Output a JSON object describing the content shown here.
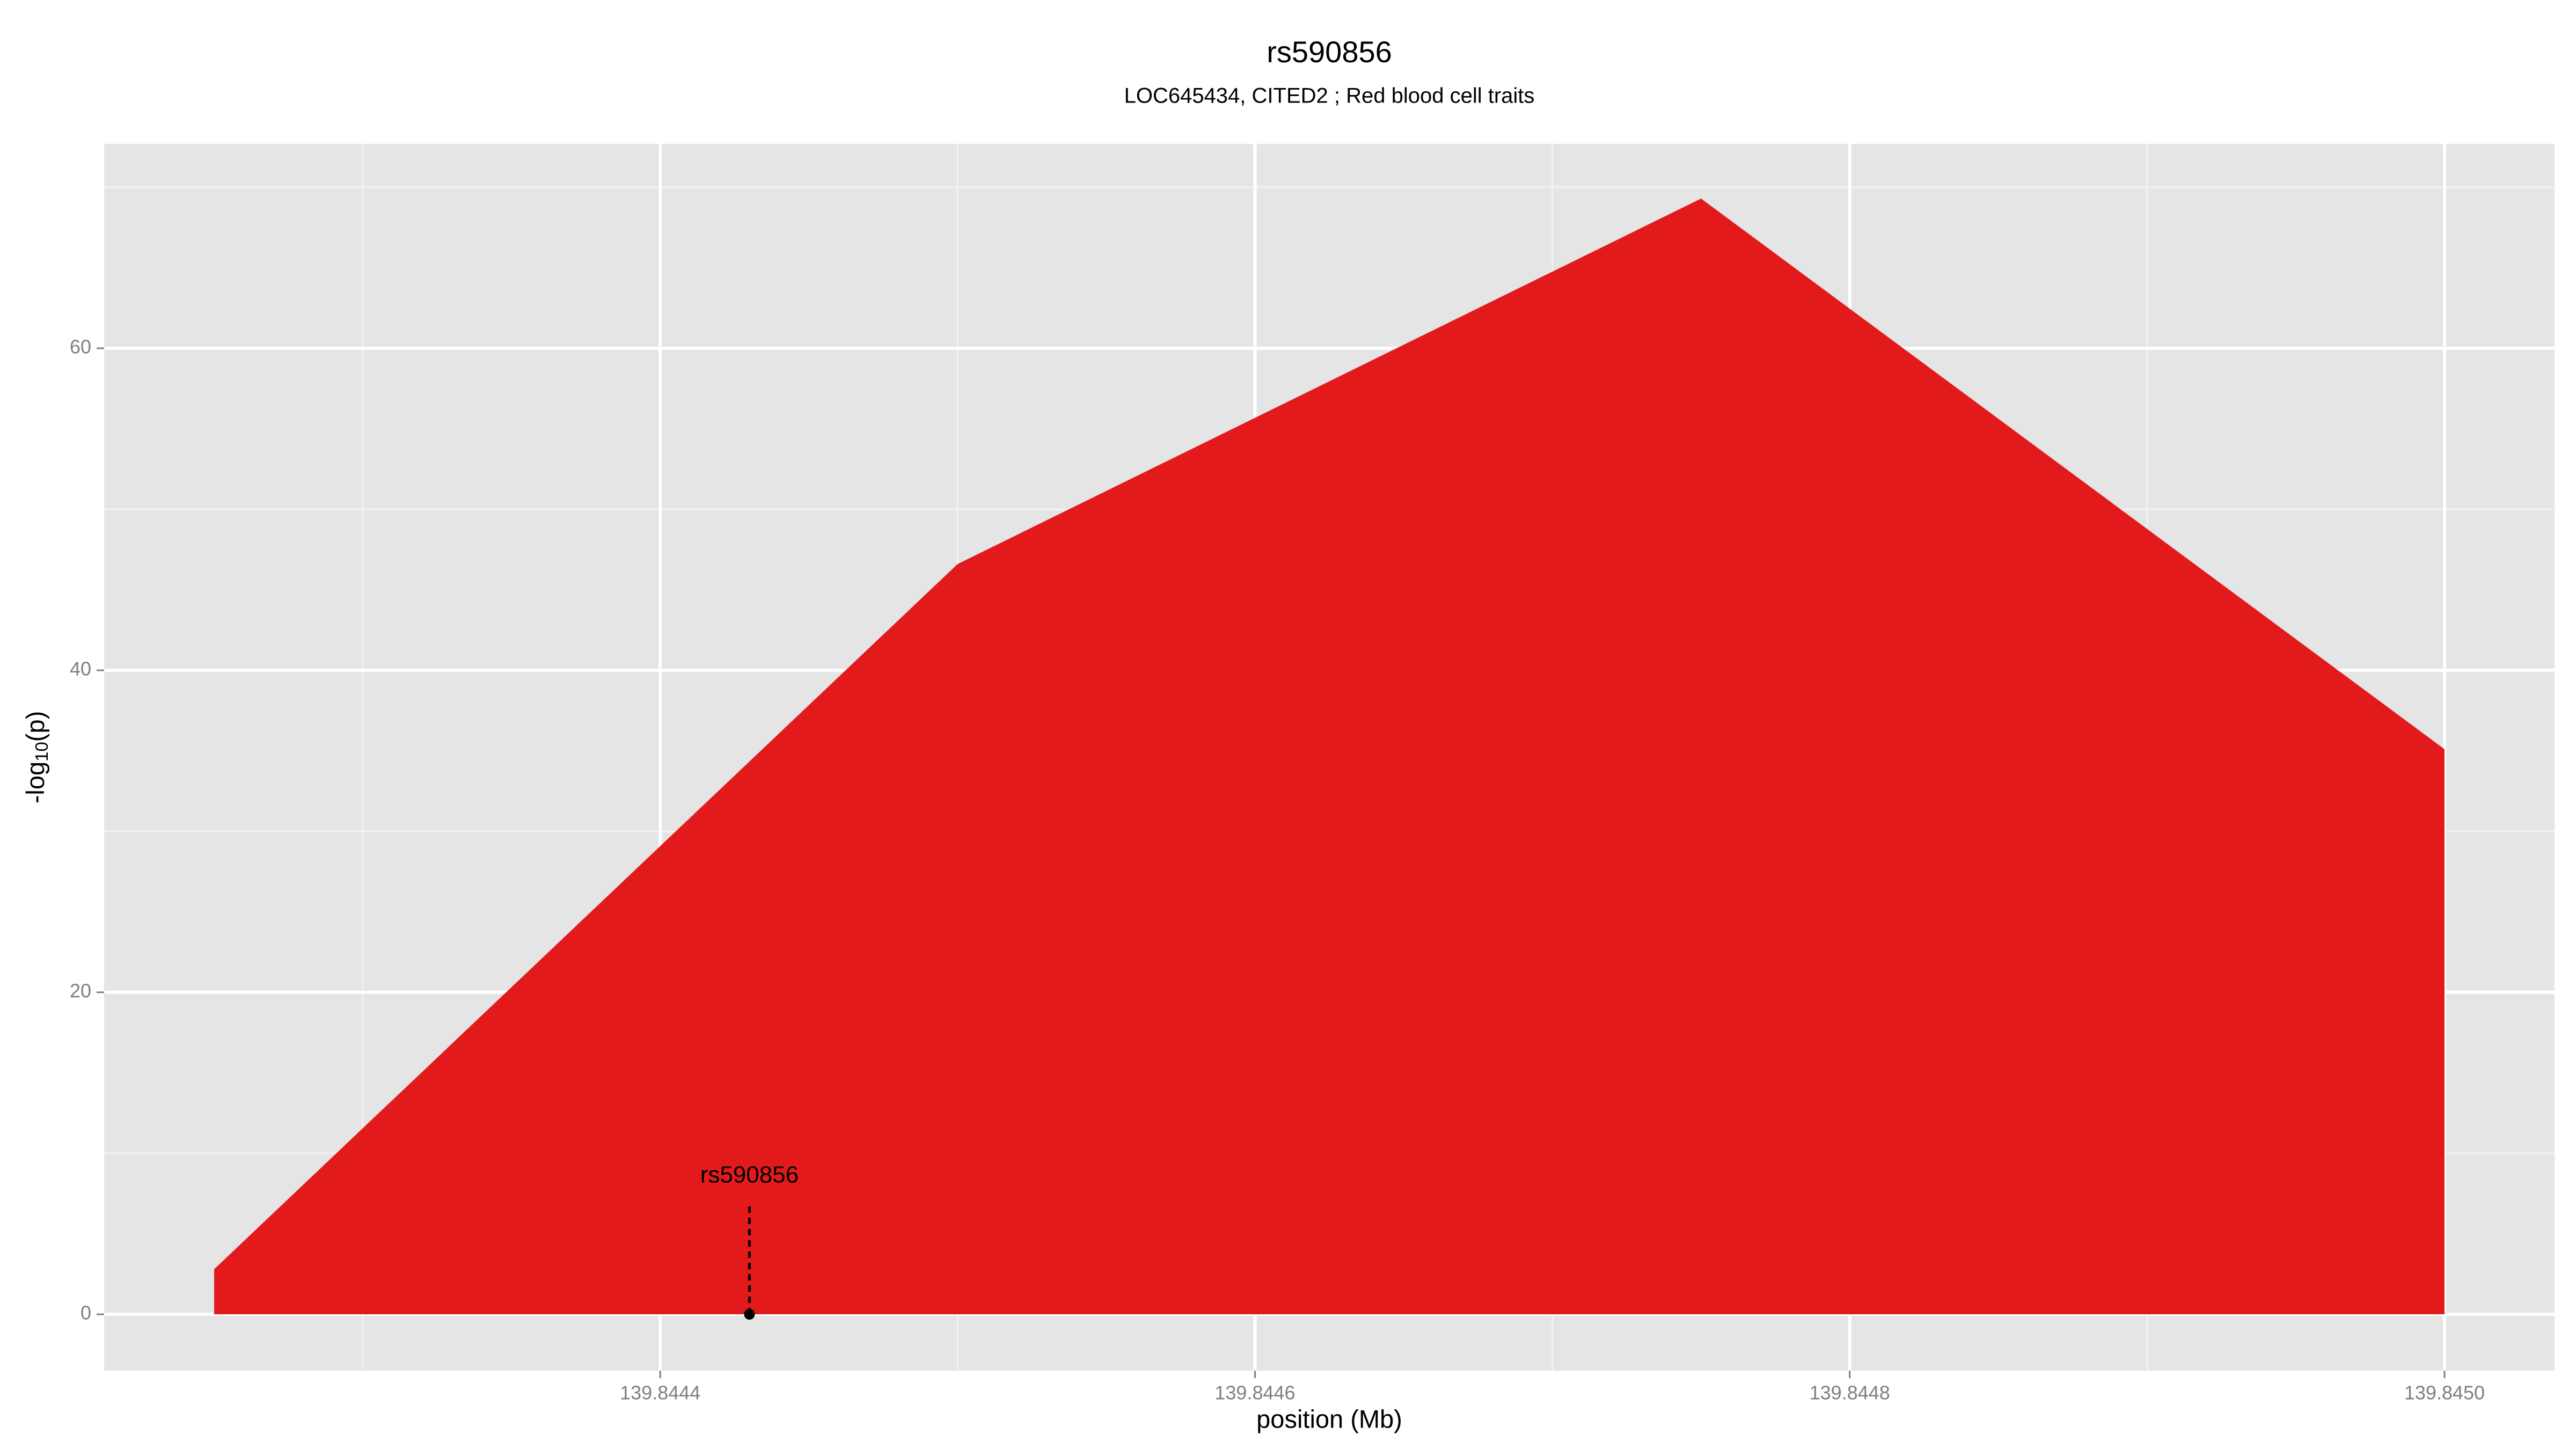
{
  "chart_data": {
    "type": "area",
    "title": "rs590856",
    "subtitle": "LOC645434, CITED2 ; Red blood cell traits",
    "x_label": "position (Mb)",
    "y_label": {
      "prefix": "-log",
      "sub": "10",
      "suffix": "(p)"
    },
    "x": [
      139.84425,
      139.8445,
      139.84475,
      139.845
    ],
    "values": [
      2.8,
      46.6,
      69.3,
      35.1
    ],
    "color": "#e31a1c",
    "xlim": [
      139.844213,
      139.845037
    ],
    "ylim": [
      -3.5,
      72.7
    ],
    "xticks": [
      139.8444,
      139.8446,
      139.8448,
      {
        "value": 139.845,
        "label": "139.8450"
      }
    ],
    "yticks": [
      0,
      20,
      40,
      60
    ],
    "grid": true,
    "annotation": {
      "label": "rs590856",
      "x": 139.84443,
      "y": 0,
      "line_top": 6.9
    }
  }
}
